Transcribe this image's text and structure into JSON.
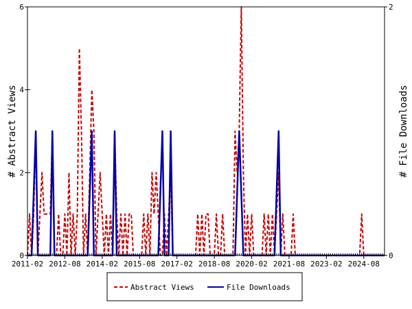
{
  "colors": {
    "background": "#ffffff",
    "axis": "#000000",
    "abstract_views": "#cc0000",
    "file_downloads": "#0000aa"
  },
  "legend": {
    "abstract_views_label": "Abstract Views",
    "file_downloads_label": "File Downloads"
  },
  "chart_data": {
    "type": "line",
    "xlabel": "",
    "ylabel": "# Abstract Views",
    "y2label": "# File Downloads",
    "ylim": [
      0,
      6
    ],
    "y2lim": [
      0,
      2
    ],
    "yticks": [
      0,
      2,
      4,
      6
    ],
    "y2ticks": [
      0,
      2
    ],
    "xlim": [
      "2011-02",
      "2025-06"
    ],
    "xticks": [
      "2011-02",
      "2012-08",
      "2014-02",
      "2015-08",
      "2017-02",
      "2018-08",
      "2020-02",
      "2021-08",
      "2023-02",
      "2024-08"
    ],
    "grid": false,
    "legend_position": "bottom",
    "series": [
      {
        "name": "Abstract Views",
        "axis": "left",
        "style": "dashed",
        "points": [
          [
            "2011-02",
            0
          ],
          [
            "2011-03",
            1
          ],
          [
            "2011-04",
            0
          ],
          [
            "2011-05",
            1
          ],
          [
            "2011-06",
            3
          ],
          [
            "2011-07",
            0
          ],
          [
            "2011-08",
            1
          ],
          [
            "2011-09",
            2
          ],
          [
            "2011-10",
            1
          ],
          [
            "2011-11",
            1
          ],
          [
            "2011-12",
            1
          ],
          [
            "2012-01",
            1
          ],
          [
            "2012-02",
            3
          ],
          [
            "2012-03",
            0
          ],
          [
            "2012-04",
            0
          ],
          [
            "2012-05",
            1
          ],
          [
            "2012-06",
            0
          ],
          [
            "2012-07",
            0
          ],
          [
            "2012-08",
            1
          ],
          [
            "2012-09",
            0
          ],
          [
            "2012-10",
            2
          ],
          [
            "2012-11",
            0
          ],
          [
            "2012-12",
            1
          ],
          [
            "2013-01",
            0
          ],
          [
            "2013-02",
            1
          ],
          [
            "2013-03",
            5
          ],
          [
            "2013-04",
            3
          ],
          [
            "2013-05",
            0
          ],
          [
            "2013-06",
            1
          ],
          [
            "2013-07",
            0
          ],
          [
            "2013-08",
            2
          ],
          [
            "2013-09",
            4
          ],
          [
            "2013-10",
            3
          ],
          [
            "2013-11",
            0
          ],
          [
            "2013-12",
            1
          ],
          [
            "2014-01",
            2
          ],
          [
            "2014-02",
            1
          ],
          [
            "2014-03",
            0
          ],
          [
            "2014-04",
            1
          ],
          [
            "2014-05",
            0
          ],
          [
            "2014-06",
            1
          ],
          [
            "2014-07",
            0
          ],
          [
            "2014-08",
            3
          ],
          [
            "2014-09",
            1
          ],
          [
            "2014-10",
            0
          ],
          [
            "2014-11",
            1
          ],
          [
            "2014-12",
            0
          ],
          [
            "2015-01",
            1
          ],
          [
            "2015-02",
            0
          ],
          [
            "2015-03",
            1
          ],
          [
            "2015-04",
            1
          ],
          [
            "2015-05",
            0
          ],
          [
            "2015-06",
            0
          ],
          [
            "2015-07",
            0
          ],
          [
            "2015-08",
            0
          ],
          [
            "2015-09",
            0
          ],
          [
            "2015-10",
            1
          ],
          [
            "2015-11",
            0
          ],
          [
            "2015-12",
            1
          ],
          [
            "2016-01",
            0
          ],
          [
            "2016-02",
            2
          ],
          [
            "2016-03",
            1
          ],
          [
            "2016-04",
            2
          ],
          [
            "2016-05",
            1
          ],
          [
            "2016-06",
            0
          ],
          [
            "2016-07",
            0
          ],
          [
            "2016-08",
            1
          ],
          [
            "2016-09",
            0
          ],
          [
            "2016-10",
            1
          ],
          [
            "2016-11",
            2
          ],
          [
            "2016-12",
            0
          ],
          [
            "2017-01",
            0
          ],
          [
            "2017-02",
            0
          ],
          [
            "2017-03",
            0
          ],
          [
            "2017-04",
            0
          ],
          [
            "2017-05",
            0
          ],
          [
            "2017-06",
            0
          ],
          [
            "2017-07",
            0
          ],
          [
            "2017-08",
            0
          ],
          [
            "2017-09",
            0
          ],
          [
            "2017-10",
            0
          ],
          [
            "2017-11",
            0
          ],
          [
            "2017-12",
            1
          ],
          [
            "2018-01",
            0
          ],
          [
            "2018-02",
            1
          ],
          [
            "2018-03",
            0
          ],
          [
            "2018-04",
            1
          ],
          [
            "2018-05",
            1
          ],
          [
            "2018-06",
            0
          ],
          [
            "2018-07",
            0
          ],
          [
            "2018-08",
            0
          ],
          [
            "2018-09",
            1
          ],
          [
            "2018-10",
            0
          ],
          [
            "2018-11",
            0
          ],
          [
            "2018-12",
            1
          ],
          [
            "2019-01",
            0
          ],
          [
            "2019-02",
            0
          ],
          [
            "2019-03",
            0
          ],
          [
            "2019-04",
            0
          ],
          [
            "2019-05",
            0
          ],
          [
            "2019-06",
            3
          ],
          [
            "2019-07",
            2
          ],
          [
            "2019-08",
            3
          ],
          [
            "2019-09",
            6
          ],
          [
            "2019-10",
            2
          ],
          [
            "2019-11",
            0
          ],
          [
            "2019-12",
            1
          ],
          [
            "2020-01",
            0
          ],
          [
            "2020-02",
            1
          ],
          [
            "2020-03",
            0
          ],
          [
            "2020-04",
            0
          ],
          [
            "2020-05",
            0
          ],
          [
            "2020-06",
            0
          ],
          [
            "2020-07",
            0
          ],
          [
            "2020-08",
            1
          ],
          [
            "2020-09",
            0
          ],
          [
            "2020-10",
            1
          ],
          [
            "2020-11",
            0
          ],
          [
            "2020-12",
            1
          ],
          [
            "2021-01",
            0
          ],
          [
            "2021-02",
            1
          ],
          [
            "2021-03",
            2
          ],
          [
            "2021-04",
            0
          ],
          [
            "2021-05",
            1
          ],
          [
            "2021-06",
            0
          ],
          [
            "2021-07",
            0
          ],
          [
            "2021-08",
            0
          ],
          [
            "2021-09",
            0
          ],
          [
            "2021-10",
            1
          ],
          [
            "2021-11",
            0
          ],
          [
            "2021-12",
            0
          ],
          [
            "2024-06",
            0
          ],
          [
            "2024-07",
            1
          ],
          [
            "2024-08",
            0
          ],
          [
            "2025-06",
            0
          ]
        ]
      },
      {
        "name": "File Downloads",
        "axis": "right",
        "style": "solid",
        "points": [
          [
            "2011-02",
            0
          ],
          [
            "2011-04",
            0
          ],
          [
            "2011-05",
            0.5
          ],
          [
            "2011-06",
            1
          ],
          [
            "2011-07",
            0
          ],
          [
            "2011-12",
            0
          ],
          [
            "2012-01",
            0
          ],
          [
            "2012-02",
            1
          ],
          [
            "2012-03",
            0
          ],
          [
            "2013-07",
            0
          ],
          [
            "2013-08",
            0.5
          ],
          [
            "2013-09",
            1
          ],
          [
            "2013-10",
            0
          ],
          [
            "2014-06",
            0
          ],
          [
            "2014-07",
            0
          ],
          [
            "2014-08",
            1
          ],
          [
            "2014-09",
            0
          ],
          [
            "2016-05",
            0
          ],
          [
            "2016-06",
            0.5
          ],
          [
            "2016-07",
            1
          ],
          [
            "2016-08",
            0
          ],
          [
            "2016-10",
            0
          ],
          [
            "2016-11",
            1
          ],
          [
            "2016-12",
            0
          ],
          [
            "2019-06",
            0
          ],
          [
            "2019-07",
            0.5
          ],
          [
            "2019-08",
            1
          ],
          [
            "2019-09",
            0.5
          ],
          [
            "2019-10",
            0
          ],
          [
            "2020-12",
            0
          ],
          [
            "2021-01",
            0
          ],
          [
            "2021-02",
            0.5
          ],
          [
            "2021-03",
            1
          ],
          [
            "2021-04",
            0
          ],
          [
            "2025-06",
            0
          ]
        ]
      }
    ]
  }
}
